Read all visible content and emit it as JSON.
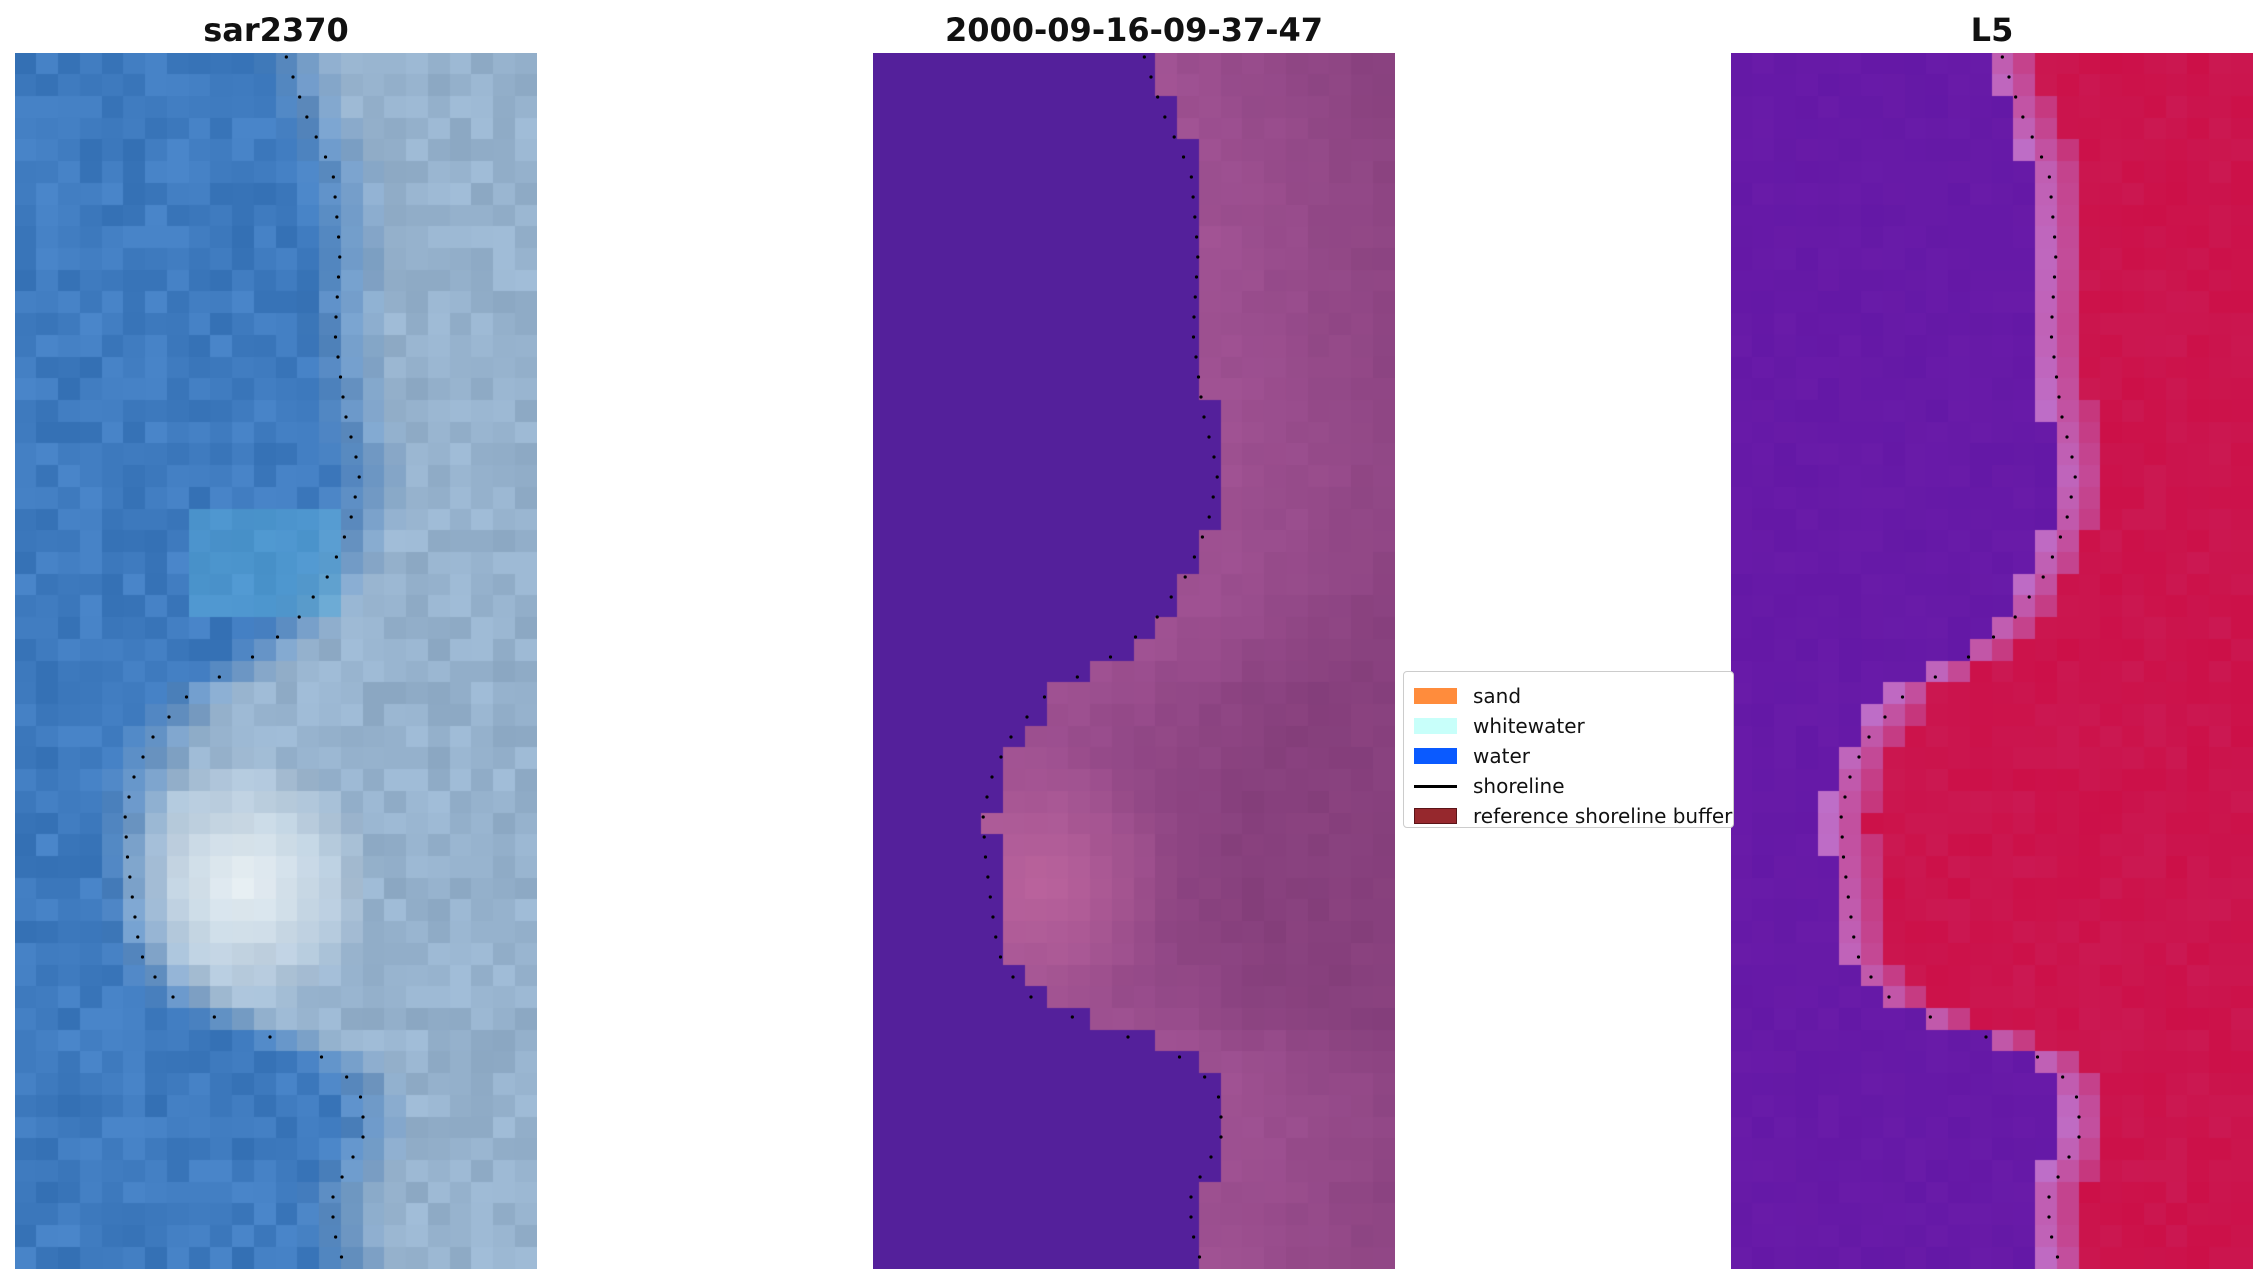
{
  "panels": [
    {
      "title": "sar2370",
      "style": "rgb"
    },
    {
      "title": "2000-09-16-09-37-47",
      "style": "classified"
    },
    {
      "title": "L5",
      "style": "index"
    }
  ],
  "legend": {
    "items": [
      {
        "label": "sand",
        "kind": "patch",
        "color": "#ff8c3c"
      },
      {
        "label": "whitewater",
        "kind": "patch",
        "color": "#c8fffa"
      },
      {
        "label": "water",
        "kind": "patch",
        "color": "#0a5aff"
      },
      {
        "label": "shoreline",
        "kind": "line",
        "color": "#000000"
      },
      {
        "label": "reference shoreline buffer",
        "kind": "patch",
        "color": "#96282d",
        "edge": "#5a1418"
      }
    ]
  },
  "colors": {
    "classified_water": "#54209b",
    "classified_land": "#a05293",
    "rgb_water": "#3f7bbf",
    "index_water": "#6418a6",
    "index_land": "#cc1048",
    "shoreline": "#000000"
  }
}
